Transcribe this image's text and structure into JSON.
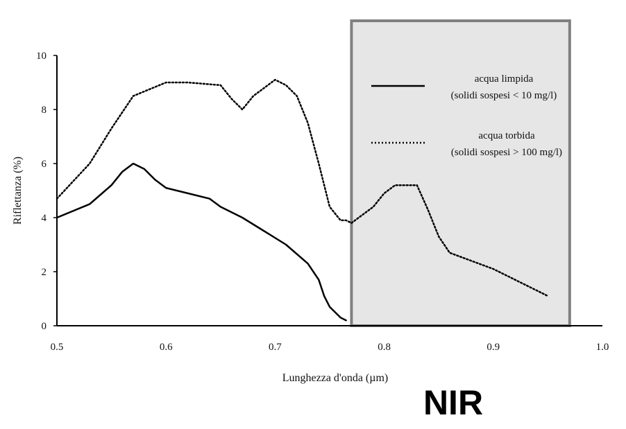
{
  "chart_data": {
    "type": "line",
    "xlabel": "Lunghezza d'onda (µm)",
    "ylabel": "Riflettanza (%)",
    "xlim": [
      0.5,
      1.0
    ],
    "ylim": [
      0,
      10
    ],
    "xticks": [
      0.5,
      0.6,
      0.7,
      0.8,
      0.9,
      1.0
    ],
    "xtick_labels": [
      "0.5",
      "0.6",
      "0.7",
      "0.8",
      "0.9",
      "1.0"
    ],
    "yticks": [
      0,
      2,
      4,
      6,
      8,
      10
    ],
    "ytick_labels": [
      "0",
      "2",
      "4",
      "6",
      "8",
      "10"
    ],
    "grid": false,
    "legend_position": "right",
    "series": [
      {
        "name_line1": "acqua limpida",
        "name_line2": "(solidi sospesi < 10 mg/l)",
        "style": "solid",
        "x": [
          0.5,
          0.53,
          0.55,
          0.56,
          0.57,
          0.58,
          0.59,
          0.6,
          0.62,
          0.64,
          0.65,
          0.67,
          0.69,
          0.71,
          0.73,
          0.74,
          0.745,
          0.75,
          0.76,
          0.765
        ],
        "y": [
          4.0,
          4.5,
          5.2,
          5.7,
          6.0,
          5.8,
          5.4,
          5.1,
          4.9,
          4.7,
          4.4,
          4.0,
          3.5,
          3.0,
          2.3,
          1.7,
          1.1,
          0.7,
          0.3,
          0.2
        ]
      },
      {
        "name_line1": "acqua torbida",
        "name_line2": "(solidi sospesi > 100 mg/l)",
        "style": "dotted",
        "x": [
          0.5,
          0.53,
          0.55,
          0.57,
          0.6,
          0.62,
          0.65,
          0.66,
          0.67,
          0.68,
          0.7,
          0.71,
          0.72,
          0.73,
          0.74,
          0.75,
          0.76,
          0.765,
          0.77,
          0.79,
          0.8,
          0.81,
          0.83,
          0.84,
          0.85,
          0.86,
          0.9,
          0.95
        ],
        "y": [
          4.7,
          6.0,
          7.3,
          8.5,
          9.0,
          9.0,
          8.9,
          8.4,
          8.0,
          8.5,
          9.1,
          8.9,
          8.5,
          7.5,
          6.0,
          4.4,
          3.9,
          3.9,
          3.8,
          4.4,
          4.9,
          5.2,
          5.2,
          4.3,
          3.3,
          2.7,
          2.1,
          1.1
        ]
      }
    ],
    "highlight": {
      "x_start": 0.77,
      "x_end": 0.97,
      "label": "NIR",
      "fill": "#e6e6e6",
      "stroke": "#808080"
    }
  }
}
